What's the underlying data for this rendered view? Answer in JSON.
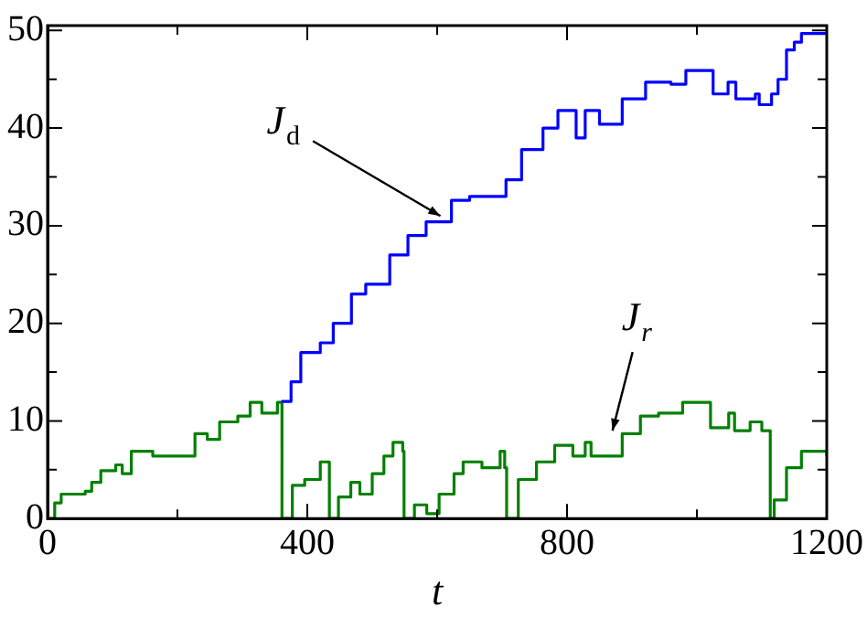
{
  "chart_data": {
    "type": "step",
    "xlabel": "t",
    "xlim": [
      0,
      1200
    ],
    "ylim": [
      0,
      50.5
    ],
    "xticks": [
      0,
      {
        "value": 200,
        "label": null
      },
      400,
      {
        "value": 600,
        "label": null
      },
      800,
      {
        "value": 1000,
        "label": null
      },
      1200
    ],
    "yticks": [
      0,
      {
        "value": 5,
        "label": null
      },
      10,
      {
        "value": 15,
        "label": null
      },
      20,
      {
        "value": 25,
        "label": null
      },
      30,
      {
        "value": 35,
        "label": null
      },
      40,
      {
        "value": 45,
        "label": null
      },
      50
    ],
    "grid": false,
    "legend": false,
    "marker": "none",
    "line_style": "solid",
    "series": [
      {
        "color": "#0000ff",
        "x": [
          360,
          375,
          390,
          410,
          420,
          440,
          468,
          490,
          527,
          555,
          583,
          622,
          650,
          678,
          706,
          730,
          763,
          786,
          814,
          828,
          850,
          870,
          885,
          921,
          960,
          983,
          1011,
          1025,
          1048,
          1060,
          1090,
          1096,
          1115,
          1125,
          1138,
          1150,
          1161,
          1200
        ],
        "values": [
          12,
          14,
          17,
          17,
          18,
          20,
          23,
          24,
          27,
          29,
          30.4,
          32.6,
          33,
          33,
          34.7,
          37.8,
          40,
          41.8,
          39,
          41.8,
          40.4,
          40.4,
          43,
          44.7,
          44.5,
          45.9,
          45.9,
          43.5,
          44.7,
          43,
          43.5,
          42.4,
          43.5,
          45,
          48,
          48.8,
          49.7,
          49.7
        ]
      },
      {
        "color": "#008000",
        "x": [
          0,
          11,
          21,
          58,
          68,
          82,
          105,
          115,
          129,
          143,
          162,
          218,
          227,
          246,
          265,
          293,
          312,
          330,
          354,
          361,
          377,
          396,
          420,
          434,
          448,
          467,
          481,
          500,
          518,
          532,
          547,
          549,
          565,
          584,
          603,
          626,
          640,
          669,
          697,
          704,
          707,
          725,
          753,
          781,
          809,
          828,
          837,
          875,
          885,
          913,
          941,
          978,
          1011,
          1021,
          1049,
          1058,
          1082,
          1100,
          1110,
          1113,
          1119,
          1138,
          1161,
          1200
        ],
        "values": [
          0,
          1.6,
          2.5,
          2.8,
          3.7,
          4.9,
          5.5,
          4.6,
          6.9,
          6.9,
          6.4,
          6.4,
          8.7,
          8.1,
          9.9,
          10.5,
          11.9,
          10.8,
          11.9,
          0,
          3.4,
          4,
          5.8,
          0,
          2.2,
          3.7,
          2.5,
          4.6,
          6.4,
          7.8,
          6.9,
          0,
          1.4,
          0.5,
          2.5,
          4.6,
          5.8,
          5.2,
          6.9,
          5.2,
          0,
          4,
          5.8,
          7.5,
          6.4,
          7.8,
          6.4,
          6.4,
          8.7,
          10.5,
          10.8,
          11.9,
          11.9,
          9.3,
          10.8,
          9,
          9.9,
          9,
          9,
          0,
          1.9,
          5.2,
          6.9,
          6.4
        ]
      }
    ],
    "annotations": [
      {
        "text": "J$_{d}$",
        "x": 605,
        "y": 31
      },
      {
        "text": "J$_{r}$",
        "x": 870,
        "y": 9
      }
    ]
  }
}
